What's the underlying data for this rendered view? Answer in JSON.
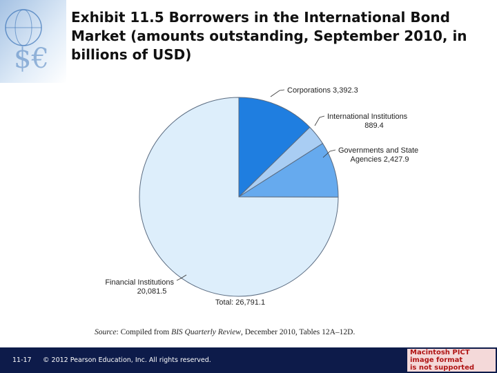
{
  "slide": {
    "title": "Exhibit 11.5  Borrowers in the International Bond Market (amounts outstanding, September 2010, in billions of USD)",
    "source_prefix": "Source",
    "source_mid": ": Compiled from ",
    "source_pub": "BIS Quarterly Review",
    "source_rest": ", December 2010, Tables 12A–12D.",
    "slide_number": "11-17",
    "copyright": "© 2012 Pearson Education, Inc. All rights reserved.",
    "pict_lines": [
      "Macintosh PICT",
      "image format",
      "is not supported"
    ]
  },
  "colors": {
    "corporations": "#1f7ee0",
    "international_institutions": "#a9cdf3",
    "governments": "#66aaee",
    "financial_institutions": "#ddeefb",
    "footer": "#0d1b4a"
  },
  "chart_data": {
    "type": "pie",
    "title": "",
    "total_label": "Total: 26,791.1",
    "total": 26791.1,
    "slices": [
      {
        "name": "Corporations",
        "value": 3392.3,
        "label_lines": [
          "Corporations 3,392.3"
        ],
        "color": "#1f7ee0"
      },
      {
        "name": "International Institutions",
        "value": 889.4,
        "label_lines": [
          "International Institutions",
          "889.4"
        ],
        "color": "#a9cdf3"
      },
      {
        "name": "Governments and State Agencies",
        "value": 2427.9,
        "label_lines": [
          "Governments and State",
          "Agencies 2,427.9"
        ],
        "color": "#66aaee"
      },
      {
        "name": "Financial Institutions",
        "value": 20081.5,
        "label_lines": [
          "Financial Institutions",
          "20,081.5"
        ],
        "color": "#ddeefb"
      }
    ],
    "start": "12 o'clock",
    "direction": "clockwise"
  }
}
